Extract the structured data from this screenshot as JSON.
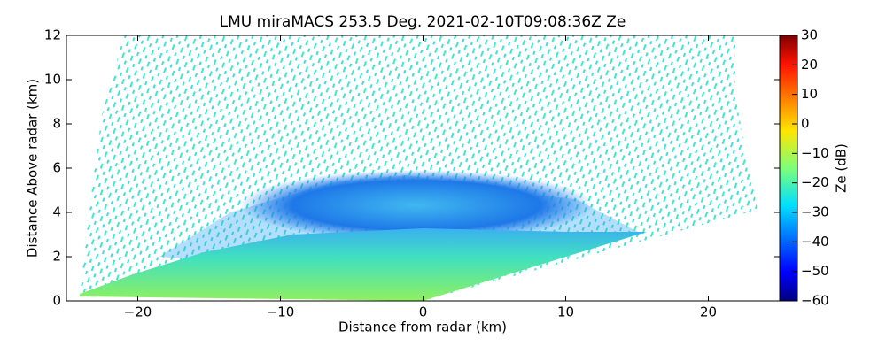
{
  "chart_data": {
    "type": "rhi",
    "title": "LMU miraMACS 253.5 Deg. 2021-02-10T09:08:36Z  Ze",
    "xlabel": "Distance from radar (km)",
    "ylabel": "Distance Above radar  (km)",
    "xlim": [
      -25,
      25
    ],
    "ylim": [
      0,
      12
    ],
    "xticks": [
      {
        "value": -20,
        "label": "−20"
      },
      {
        "value": -10,
        "label": "−10"
      },
      0,
      10,
      20
    ],
    "yticks": [
      0,
      2,
      4,
      6,
      8,
      10,
      12
    ],
    "colorbar": {
      "label": "Ze (dB)",
      "colormap": "jet",
      "clim": [
        -60,
        30
      ],
      "ticks": [
        {
          "value": -60,
          "label": "−60"
        },
        {
          "value": -50,
          "label": "−50"
        },
        {
          "value": -40,
          "label": "−40"
        },
        {
          "value": -30,
          "label": "−30"
        },
        {
          "value": -20,
          "label": "−20"
        },
        {
          "value": -10,
          "label": "−10"
        },
        0,
        10,
        20,
        30
      ]
    }
  }
}
